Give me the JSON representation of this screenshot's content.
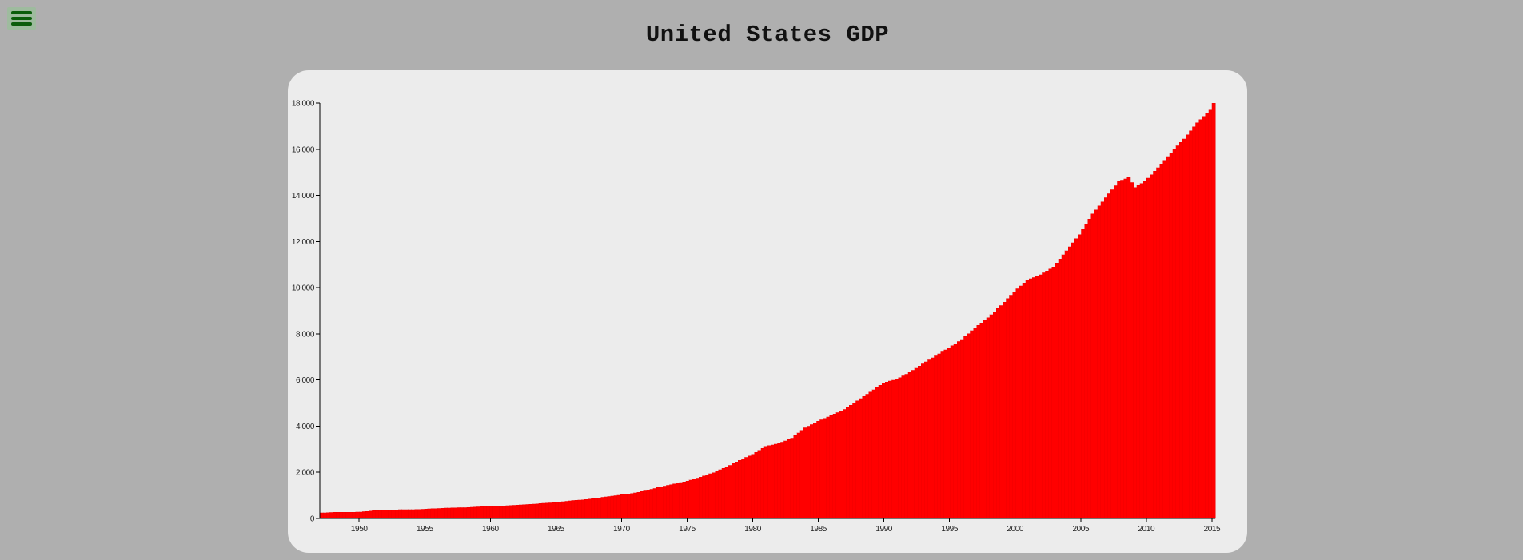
{
  "title": "United States GDP",
  "menu": {
    "icon": "hamburger-menu-icon"
  },
  "colors": {
    "background": "#afafaf",
    "card": "#ececec",
    "bar": "#ff0000",
    "bar_edge": "#e00000",
    "menu_icon": "#0b5d0b"
  },
  "chart_data": {
    "type": "bar",
    "title": "United States GDP",
    "xlabel": "",
    "ylabel": "",
    "xlim": [
      1947,
      2015.25
    ],
    "ylim": [
      0,
      18000
    ],
    "grid": false,
    "y_ticks": [
      0,
      2000,
      4000,
      6000,
      8000,
      10000,
      12000,
      14000,
      16000,
      18000
    ],
    "y_tick_labels": [
      "0",
      "2,000",
      "4,000",
      "6,000",
      "8,000",
      "10,000",
      "12,000",
      "14,000",
      "16,000",
      "18,000"
    ],
    "x_ticks": [
      1950,
      1955,
      1960,
      1965,
      1970,
      1975,
      1980,
      1985,
      1990,
      1995,
      2000,
      2005,
      2010,
      2015
    ],
    "x_tick_labels": [
      "1950",
      "1955",
      "1960",
      "1965",
      "1970",
      "1975",
      "1980",
      "1985",
      "1990",
      "1995",
      "2000",
      "2005",
      "2010",
      "2015"
    ],
    "frequency": "quarterly",
    "series": [
      {
        "points": [
          [
            1947.0,
            243
          ],
          [
            1948.0,
            269
          ],
          [
            1949.0,
            272
          ],
          [
            1950.0,
            280
          ],
          [
            1951.0,
            340
          ],
          [
            1952.0,
            360
          ],
          [
            1953.0,
            385
          ],
          [
            1954.0,
            385
          ],
          [
            1955.0,
            410
          ],
          [
            1956.0,
            440
          ],
          [
            1957.0,
            465
          ],
          [
            1958.0,
            470
          ],
          [
            1959.0,
            505
          ],
          [
            1960.0,
            540
          ],
          [
            1961.0,
            550
          ],
          [
            1962.0,
            585
          ],
          [
            1963.0,
            620
          ],
          [
            1964.0,
            660
          ],
          [
            1965.0,
            700
          ],
          [
            1966.0,
            770
          ],
          [
            1967.0,
            810
          ],
          [
            1968.0,
            880
          ],
          [
            1969.0,
            960
          ],
          [
            1970.0,
            1030
          ],
          [
            1971.0,
            1110
          ],
          [
            1972.0,
            1230
          ],
          [
            1973.0,
            1380
          ],
          [
            1974.0,
            1500
          ],
          [
            1975.0,
            1620
          ],
          [
            1976.0,
            1800
          ],
          [
            1977.0,
            1990
          ],
          [
            1978.0,
            2240
          ],
          [
            1979.0,
            2520
          ],
          [
            1980.0,
            2780
          ],
          [
            1981.0,
            3130
          ],
          [
            1982.0,
            3250
          ],
          [
            1983.0,
            3480
          ],
          [
            1984.0,
            3930
          ],
          [
            1985.0,
            4220
          ],
          [
            1986.0,
            4460
          ],
          [
            1987.0,
            4730
          ],
          [
            1988.0,
            5100
          ],
          [
            1989.0,
            5480
          ],
          [
            1990.0,
            5880
          ],
          [
            1991.0,
            6030
          ],
          [
            1992.0,
            6330
          ],
          [
            1993.0,
            6700
          ],
          [
            1994.0,
            7050
          ],
          [
            1995.0,
            7400
          ],
          [
            1996.0,
            7760
          ],
          [
            1997.0,
            8260
          ],
          [
            1998.0,
            8700
          ],
          [
            1999.0,
            9230
          ],
          [
            2000.0,
            9830
          ],
          [
            2001.0,
            10330
          ],
          [
            2002.0,
            10560
          ],
          [
            2003.0,
            10900
          ],
          [
            2004.0,
            11600
          ],
          [
            2005.0,
            12300
          ],
          [
            2006.0,
            13200
          ],
          [
            2007.0,
            13900
          ],
          [
            2008.0,
            14600
          ],
          [
            2008.75,
            14780
          ],
          [
            2009.25,
            14340
          ],
          [
            2010.0,
            14600
          ],
          [
            2011.0,
            15200
          ],
          [
            2012.0,
            15850
          ],
          [
            2013.0,
            16450
          ],
          [
            2014.0,
            17150
          ],
          [
            2015.0,
            17700
          ],
          [
            2015.25,
            18000
          ]
        ]
      }
    ]
  }
}
